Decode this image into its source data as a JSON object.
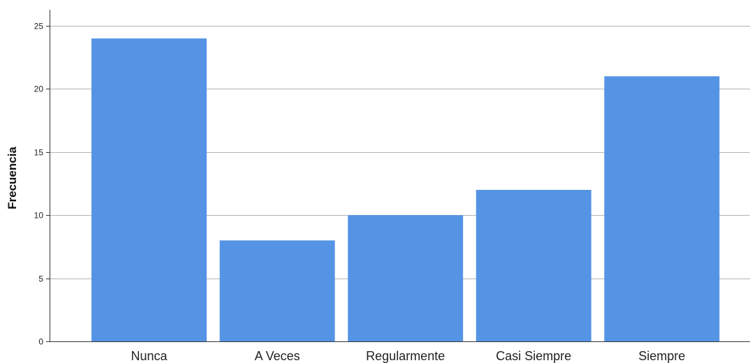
{
  "chart_data": {
    "type": "bar",
    "title": "",
    "xlabel": "",
    "ylabel": "Frecuencia",
    "categories": [
      "Nunca",
      "A Veces",
      "Regularmente",
      "Casi Siempre",
      "Siempre"
    ],
    "values": [
      24,
      8,
      10,
      12,
      21
    ],
    "ylim": [
      0,
      25
    ],
    "yticks": [
      0,
      5,
      10,
      15,
      20,
      25
    ],
    "ytick_labels": [
      "0",
      "5",
      "10",
      "15",
      "20",
      "25"
    ],
    "grid": true,
    "legend": "none",
    "bar_color": "#5594e4",
    "grid_color": "#b3b3b3",
    "axis_color": "#333333"
  }
}
